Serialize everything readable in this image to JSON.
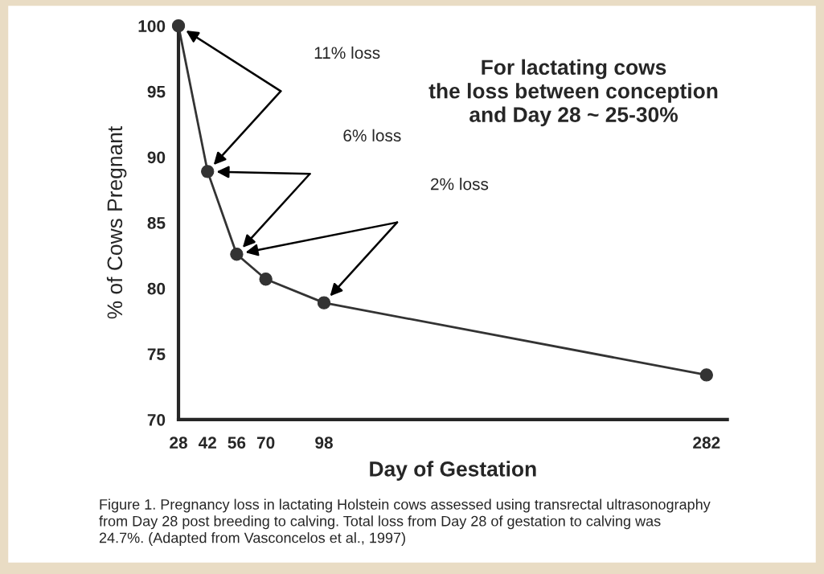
{
  "chart_data": {
    "type": "line",
    "xlabel": "Day of Gestation",
    "ylabel": "% of Cows Pregnant",
    "x": [
      28,
      42,
      56,
      70,
      98,
      282
    ],
    "series": [
      {
        "color": "#333333",
        "values": [
          100,
          88.9,
          82.6,
          80.7,
          78.9,
          73.4
        ]
      }
    ],
    "xlim": [
      28,
      292
    ],
    "xticks": [
      28,
      42,
      56,
      70,
      98,
      282
    ],
    "ylim": [
      70,
      100
    ],
    "yticks": [
      70,
      75,
      80,
      85,
      90,
      95,
      100
    ],
    "marker": "circle",
    "line_style": "solid",
    "grid": false,
    "legend": false,
    "annotations": [
      "11% loss",
      "6% loss",
      "2% loss",
      "For lactating cows\nthe loss between conception\nand Day 28 ~ 25-30%",
      "Figure 1. Pregnancy loss in lactating Holstein cows assessed using transrectal ultrasonography\nfrom Day 28 post breeding to calving. Total loss from Day 28 of gestation to calving was\n24.7%. (Adapted from Vasconcelos et al., 1997)"
    ]
  }
}
